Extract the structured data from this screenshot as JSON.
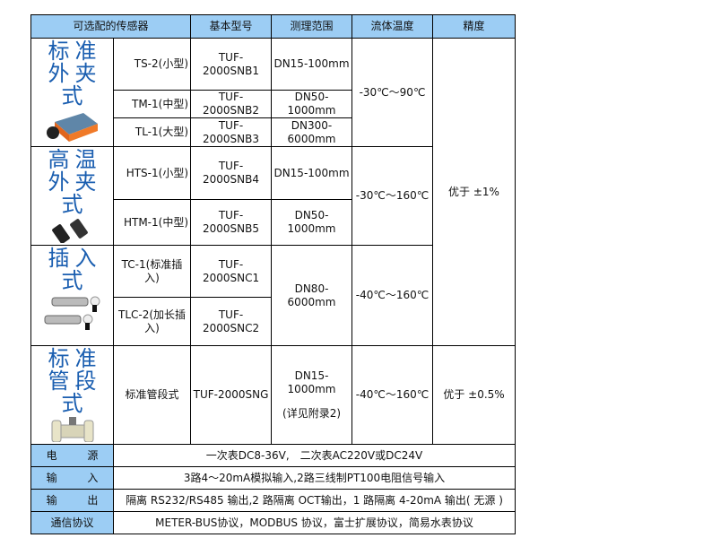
{
  "header": [
    "可选配的传感器",
    "基本型号",
    "测理范围",
    "流体温度",
    "精度"
  ],
  "groups": [
    {
      "title": [
        "标",
        "准",
        "外",
        "夹",
        "式"
      ],
      "image": "clamp-on-sensor"
    },
    {
      "title": [
        "高",
        "温",
        "外",
        "夹",
        "式"
      ],
      "image": "high-temp-sensor"
    },
    {
      "title": [
        "插",
        "入",
        "式"
      ],
      "image": "insertion-sensor"
    },
    {
      "title": [
        "标",
        "准",
        "管",
        "段",
        "式"
      ],
      "image": "pipe-section-sensor"
    }
  ],
  "rows": [
    {
      "sensor": "TS-2(小型)",
      "model": "TUF-2000SNB1",
      "range": "DN15-100mm"
    },
    {
      "sensor": "TM-1(中型)",
      "model": "TUF-2000SNB2",
      "range": "DN50-1000mm"
    },
    {
      "sensor": "TL-1(大型)",
      "model": "TUF-2000SNB3",
      "range": "DN300-6000mm"
    },
    {
      "sensor": "HTS-1(小型)",
      "model": "TUF-2000SNB4",
      "range": "DN15-100mm"
    },
    {
      "sensor": "HTM-1(中型)",
      "model": "TUF-2000SNB5",
      "range": "DN50-1000mm"
    },
    {
      "sensor": "TC-1(标准插入)",
      "model": "TUF-2000SNC1",
      "range": "DN80-6000mm"
    },
    {
      "sensor": "TLC-2(加长插入)",
      "model": "TUF-2000SNC2"
    },
    {
      "sensor": "标准管段式",
      "model": "TUF-2000SNG",
      "range": "DN15-1000mm",
      "range_note": "(详见附录2)"
    }
  ],
  "temps": [
    "-30℃～90℃",
    "-30℃～160℃",
    "-40℃～160℃",
    "-40℃～160℃"
  ],
  "precision": [
    "优于 ±1%",
    "优于 ±0.5%"
  ],
  "specs": [
    {
      "label": "电 源",
      "value": "一次表DC8-36V,　二次表AC220V或DC24V"
    },
    {
      "label": "输 入",
      "value": "3路4～20mA模拟输入,2路三线制PT100电阻信号输入"
    },
    {
      "label": "输 出",
      "value": "隔离 RS232/RS485 输出,2 路隔离 OCT输出，1 路隔离 4-20mA 输出( 无源 )"
    },
    {
      "label": "通信协议",
      "value": "METER-BUS协议，MODBUS 协议，富士扩展协议，简易水表协议"
    }
  ],
  "colors": {
    "header_bg": "#9ccdf4",
    "title_text": "#1a5eb0"
  }
}
